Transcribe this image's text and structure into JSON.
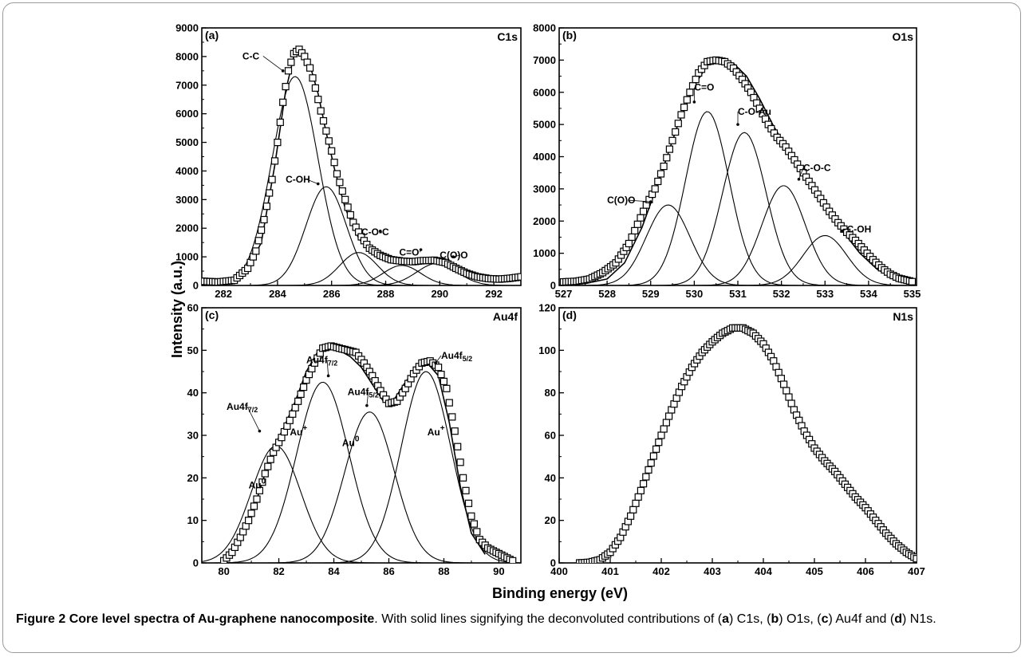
{
  "caption": {
    "figure_label": "Figure 2",
    "title": "Core level spectra of Au-graphene nanocomposite",
    "text_1": ". With solid lines signifying the deconvoluted contributions of (",
    "a": "a",
    "text_2": ") C1s, (",
    "b": "b",
    "text_3": ") O1s, (",
    "c": "c",
    "text_4": ") Au4f and (",
    "d": "d",
    "text_5": ") N1s."
  },
  "chart_data": [
    {
      "type": "scatter",
      "panel_tag": "(a)",
      "label": "C1s",
      "xlabel": "Binding energy (eV)",
      "ylabel": "Intensity (a.u.)",
      "xlim": [
        281.2,
        293
      ],
      "ylim": [
        0,
        9000
      ],
      "xticks": [
        282,
        284,
        286,
        288,
        290,
        292
      ],
      "yticks": [
        0,
        1000,
        2000,
        3000,
        4000,
        5000,
        6000,
        7000,
        8000,
        9000
      ],
      "components": [
        {
          "name": "C-C",
          "center": 284.65,
          "height": 7300,
          "sigma": 0.85
        },
        {
          "name": "C-OH",
          "center": 285.8,
          "height": 3450,
          "sigma": 0.75
        },
        {
          "name": "C-O-C",
          "center": 287.0,
          "height": 1150,
          "sigma": 0.7
        },
        {
          "name": "C=O",
          "center": 288.6,
          "height": 700,
          "sigma": 0.7
        },
        {
          "name": "C(O)O",
          "center": 289.9,
          "height": 770,
          "sigma": 0.75
        }
      ],
      "envelope": {
        "x": [
          281.2,
          282.0,
          282.8,
          283.4,
          283.9,
          284.3,
          284.6,
          284.9,
          285.2,
          285.5,
          285.8,
          286.1,
          286.5,
          287.0,
          287.5,
          288.0,
          288.5,
          289.0,
          289.5,
          290.0,
          290.5,
          291.0,
          291.5,
          292.0,
          293.0
        ],
        "y": [
          150,
          150,
          400,
          1500,
          4200,
          6800,
          8000,
          8150,
          7700,
          6700,
          5350,
          4100,
          2700,
          1650,
          1100,
          900,
          850,
          830,
          870,
          830,
          650,
          450,
          300,
          250,
          300
        ]
      },
      "data_points": {
        "x": [
          281.2,
          281.8,
          282.4,
          282.9,
          283.2,
          283.5,
          283.8,
          284.0,
          284.2,
          284.4,
          284.6,
          284.8,
          285.0,
          285.2,
          285.4,
          285.6,
          285.8,
          286.0,
          286.2,
          286.5,
          286.8,
          287.1,
          287.4,
          287.8,
          288.2,
          288.6,
          289.0,
          289.4,
          289.8,
          290.2,
          290.6,
          291.0,
          291.4,
          291.8,
          292.2,
          292.6,
          293.0
        ],
        "y": [
          150,
          120,
          180,
          600,
          1200,
          2300,
          3700,
          5000,
          6400,
          7500,
          8100,
          8250,
          8000,
          7600,
          6900,
          6100,
          5400,
          4700,
          3900,
          3000,
          2200,
          1700,
          1300,
          1050,
          900,
          850,
          830,
          870,
          880,
          800,
          600,
          420,
          300,
          240,
          220,
          250,
          300
        ]
      },
      "annotations": [
        "C-C",
        "C-OH",
        "C-O-C",
        "C=O",
        "C(O)O"
      ]
    },
    {
      "type": "scatter",
      "panel_tag": "(b)",
      "label": "O1s",
      "xlabel": "Binding energy (eV)",
      "ylabel": "Intensity (a.u.)",
      "xlim": [
        526.9,
        535.1
      ],
      "ylim": [
        0,
        8000
      ],
      "xticks": [
        527,
        528,
        529,
        530,
        531,
        532,
        533,
        534,
        535
      ],
      "yticks": [
        0,
        1000,
        2000,
        3000,
        4000,
        5000,
        6000,
        7000,
        8000
      ],
      "components": [
        {
          "name": "C(O)O",
          "center": 529.4,
          "height": 2500,
          "sigma": 0.5
        },
        {
          "name": "C=O",
          "center": 530.3,
          "height": 5400,
          "sigma": 0.5
        },
        {
          "name": "C-O-Au",
          "center": 531.15,
          "height": 4750,
          "sigma": 0.5
        },
        {
          "name": "C-O-C",
          "center": 532.05,
          "height": 3100,
          "sigma": 0.5
        },
        {
          "name": "C-OH",
          "center": 533.0,
          "height": 1550,
          "sigma": 0.5
        }
      ],
      "envelope": {
        "x": [
          527.0,
          527.5,
          528.0,
          528.4,
          528.8,
          529.2,
          529.6,
          530.0,
          530.3,
          530.6,
          530.9,
          531.2,
          531.5,
          531.8,
          532.1,
          532.4,
          532.7,
          533.0,
          533.4,
          533.8,
          534.2,
          534.6,
          535.0
        ],
        "y": [
          30,
          60,
          200,
          700,
          1800,
          3300,
          4900,
          6200,
          6850,
          7000,
          6900,
          6500,
          5800,
          5000,
          4300,
          3700,
          3100,
          2500,
          1700,
          1000,
          500,
          200,
          80
        ]
      },
      "data_points": {
        "x": [
          527.0,
          527.3,
          527.6,
          527.9,
          528.2,
          528.5,
          528.7,
          528.9,
          529.1,
          529.3,
          529.5,
          529.7,
          529.9,
          530.1,
          530.3,
          530.5,
          530.7,
          530.9,
          531.1,
          531.3,
          531.5,
          531.7,
          531.9,
          532.1,
          532.3,
          532.5,
          532.7,
          532.9,
          533.1,
          533.3,
          533.5,
          533.7,
          533.9,
          534.1,
          534.3,
          534.5,
          534.7,
          535.0
        ],
        "y": [
          110,
          130,
          200,
          400,
          700,
          1300,
          1900,
          2500,
          3000,
          3700,
          4500,
          5300,
          6000,
          6600,
          6950,
          7000,
          6950,
          6750,
          6400,
          6000,
          5500,
          5000,
          4600,
          4300,
          3900,
          3500,
          3100,
          2700,
          2300,
          1950,
          1650,
          1400,
          1100,
          800,
          550,
          350,
          220,
          120
        ]
      },
      "annotations": [
        "C(O)O",
        "C=O",
        "C-O-Au",
        "C-O-C",
        "C-OH"
      ]
    },
    {
      "type": "scatter",
      "panel_tag": "(c)",
      "label": "Au4f",
      "xlabel": "Binding energy (eV)",
      "ylabel": "Intensity (a.u.)",
      "xlim": [
        79.2,
        90.8
      ],
      "ylim": [
        0,
        60
      ],
      "xticks": [
        80,
        82,
        84,
        86,
        88,
        90
      ],
      "yticks": [
        0,
        10,
        20,
        30,
        40,
        50,
        60
      ],
      "components": [
        {
          "name": "Au0 (Au4f7/2)",
          "center": 81.9,
          "height": 27.5,
          "sigma": 0.9
        },
        {
          "name": "Au+ (Au4f7/2)",
          "center": 83.6,
          "height": 42.5,
          "sigma": 0.95
        },
        {
          "name": "Au0 (Au4f5/2)",
          "center": 85.3,
          "height": 35.5,
          "sigma": 0.9
        },
        {
          "name": "Au+ (Au4f5/2)",
          "center": 87.35,
          "height": 45,
          "sigma": 0.9
        }
      ],
      "envelope": {
        "x": [
          80.0,
          80.6,
          81.0,
          81.4,
          81.8,
          82.2,
          82.6,
          83.0,
          83.4,
          83.8,
          84.2,
          84.6,
          85.0,
          85.4,
          85.8,
          86.2,
          86.6,
          87.0,
          87.4,
          87.8,
          88.2,
          88.6,
          89.0,
          89.5
        ],
        "y": [
          1,
          5,
          11,
          19,
          27,
          32,
          38,
          45,
          49.5,
          51,
          50,
          48.5,
          46,
          42,
          38,
          38.5,
          42.5,
          46,
          47,
          44,
          33,
          18,
          7,
          2
        ]
      },
      "data_points": {
        "x": [
          80.0,
          80.3,
          80.6,
          80.9,
          81.2,
          81.5,
          81.8,
          82.1,
          82.4,
          82.7,
          83.0,
          83.3,
          83.6,
          83.9,
          84.2,
          84.5,
          84.8,
          85.1,
          85.4,
          85.7,
          86.0,
          86.3,
          86.6,
          86.9,
          87.2,
          87.5,
          87.8,
          88.1,
          88.4,
          88.7,
          89.0,
          89.3,
          89.6,
          89.9,
          90.2,
          90.5
        ],
        "y": [
          0.5,
          2.5,
          6,
          10,
          15,
          21,
          26,
          29.5,
          33.5,
          38,
          43,
          47,
          50.5,
          51,
          50.5,
          50,
          49.5,
          47,
          44,
          40.5,
          37.5,
          38,
          41,
          44.5,
          47,
          47.5,
          46,
          41,
          31,
          20,
          11,
          5.5,
          3.5,
          2.5,
          1.5,
          0.5
        ]
      },
      "annotations": [
        "Au4f7/2",
        "Au4f7/2",
        "Au4f5/2",
        "Au4f5/2",
        "Au0",
        "Au+",
        "Au0",
        "Au+"
      ]
    },
    {
      "type": "scatter",
      "panel_tag": "(d)",
      "label": "N1s",
      "xlabel": "Binding energy (eV)",
      "ylabel": "Intensity (a.u.)",
      "xlim": [
        400,
        407
      ],
      "ylim": [
        0,
        120
      ],
      "xticks": [
        400,
        401,
        402,
        403,
        404,
        405,
        406,
        407
      ],
      "yticks": [
        0,
        20,
        40,
        60,
        80,
        100,
        120
      ],
      "data_points": {
        "x": [
          400.4,
          400.6,
          400.8,
          401.0,
          401.2,
          401.4,
          401.6,
          401.8,
          402.0,
          402.2,
          402.4,
          402.6,
          402.8,
          403.0,
          403.2,
          403.4,
          403.6,
          403.8,
          404.0,
          404.2,
          404.4,
          404.6,
          404.8,
          405.0,
          405.2,
          405.4,
          405.6,
          405.8,
          406.0,
          406.2,
          406.4,
          406.6,
          406.8,
          407.0
        ],
        "y": [
          0,
          0.3,
          1.5,
          5,
          12,
          22,
          34,
          47,
          60,
          72,
          83,
          92,
          99,
          104,
          108,
          110.5,
          110.5,
          108,
          103,
          95,
          84,
          72,
          62,
          54,
          48,
          43,
          37,
          31,
          26,
          20,
          14,
          9,
          5,
          2
        ]
      },
      "annotations": []
    }
  ]
}
